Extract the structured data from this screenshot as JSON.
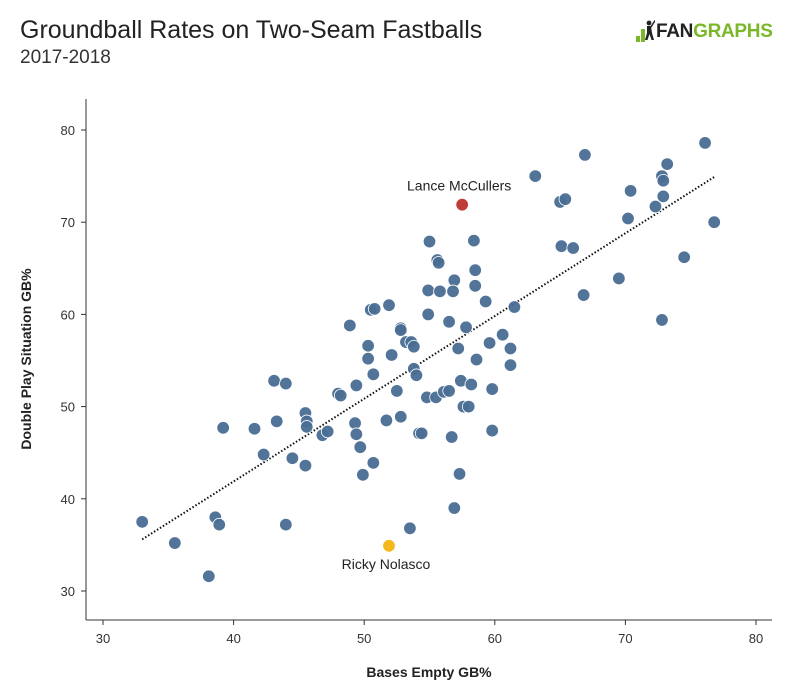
{
  "header": {
    "title": "Groundball Rates on Two-Seam Fastballs",
    "subtitle": "2017-2018"
  },
  "logo": {
    "text_part1": "FAN",
    "text_part2": "GRAPHS",
    "color": "#7ab829",
    "icon": "fangraphs-batter-logo-icon"
  },
  "colors": {
    "point": "#4a6d94",
    "highlight_red": "#c03c36",
    "highlight_yellow": "#f4b81c"
  },
  "chart_data": {
    "type": "scatter",
    "title": "Groundball Rates on Two-Seam Fastballs",
    "subtitle": "2017-2018",
    "xlabel": "Bases Empty GB%",
    "ylabel": "Double Play Situation GB%",
    "xlim": [
      29,
      81
    ],
    "ylim": [
      27,
      83
    ],
    "xticks": [
      30,
      40,
      50,
      60,
      70,
      80
    ],
    "yticks": [
      30,
      40,
      50,
      60,
      70,
      80
    ],
    "grid": false,
    "trendline": {
      "style": "dotted",
      "x": [
        33,
        76.8
      ],
      "y": [
        35.6,
        74.9
      ]
    },
    "points": [
      [
        33.0,
        37.5
      ],
      [
        35.5,
        35.2
      ],
      [
        38.1,
        31.6
      ],
      [
        38.6,
        38.0
      ],
      [
        38.9,
        37.2
      ],
      [
        39.2,
        47.7
      ],
      [
        41.6,
        47.6
      ],
      [
        42.3,
        44.8
      ],
      [
        43.1,
        52.8
      ],
      [
        43.3,
        48.4
      ],
      [
        44.0,
        52.5
      ],
      [
        44.0,
        37.2
      ],
      [
        44.5,
        44.4
      ],
      [
        45.5,
        49.3
      ],
      [
        45.6,
        48.4
      ],
      [
        45.6,
        47.8
      ],
      [
        45.5,
        43.6
      ],
      [
        46.8,
        46.9
      ],
      [
        47.2,
        47.3
      ],
      [
        48.0,
        51.4
      ],
      [
        48.2,
        51.2
      ],
      [
        48.9,
        58.8
      ],
      [
        49.4,
        52.3
      ],
      [
        49.3,
        48.2
      ],
      [
        49.4,
        47.0
      ],
      [
        49.7,
        45.6
      ],
      [
        49.9,
        42.6
      ],
      [
        50.3,
        56.6
      ],
      [
        50.3,
        55.2
      ],
      [
        50.5,
        60.5
      ],
      [
        50.8,
        60.6
      ],
      [
        50.7,
        53.5
      ],
      [
        50.7,
        43.9
      ],
      [
        51.7,
        48.5
      ],
      [
        51.9,
        61.0
      ],
      [
        52.1,
        55.6
      ],
      [
        52.5,
        51.7
      ],
      [
        52.8,
        58.5
      ],
      [
        52.8,
        58.3
      ],
      [
        52.8,
        48.9
      ],
      [
        53.2,
        57.0
      ],
      [
        53.6,
        57.0
      ],
      [
        53.5,
        36.8
      ],
      [
        53.8,
        56.5
      ],
      [
        53.8,
        54.1
      ],
      [
        54.0,
        53.4
      ],
      [
        54.2,
        47.1
      ],
      [
        54.4,
        47.1
      ],
      [
        54.8,
        51.0
      ],
      [
        55.0,
        67.9
      ],
      [
        54.9,
        62.6
      ],
      [
        54.9,
        60.0
      ],
      [
        55.5,
        51.0
      ],
      [
        55.6,
        65.9
      ],
      [
        55.7,
        65.6
      ],
      [
        55.8,
        62.5
      ],
      [
        56.1,
        51.6
      ],
      [
        56.5,
        59.2
      ],
      [
        56.5,
        51.7
      ],
      [
        56.7,
        46.7
      ],
      [
        56.9,
        63.7
      ],
      [
        56.9,
        39.0
      ],
      [
        56.8,
        62.5
      ],
      [
        57.2,
        56.3
      ],
      [
        57.3,
        42.7
      ],
      [
        57.4,
        52.8
      ],
      [
        57.6,
        50.0
      ],
      [
        57.8,
        58.6
      ],
      [
        58.0,
        50.0
      ],
      [
        58.2,
        52.4
      ],
      [
        58.4,
        68.0
      ],
      [
        58.5,
        64.8
      ],
      [
        58.5,
        63.1
      ],
      [
        58.6,
        55.1
      ],
      [
        59.3,
        61.4
      ],
      [
        59.6,
        56.9
      ],
      [
        59.8,
        51.9
      ],
      [
        59.8,
        47.4
      ],
      [
        60.6,
        57.8
      ],
      [
        61.2,
        56.3
      ],
      [
        61.2,
        54.5
      ],
      [
        61.5,
        60.8
      ],
      [
        63.1,
        75.0
      ],
      [
        65.0,
        72.2
      ],
      [
        65.1,
        67.4
      ],
      [
        65.4,
        72.5
      ],
      [
        66.0,
        67.2
      ],
      [
        66.8,
        62.1
      ],
      [
        66.9,
        77.3
      ],
      [
        69.5,
        63.9
      ],
      [
        70.2,
        70.4
      ],
      [
        70.4,
        73.4
      ],
      [
        72.3,
        71.7
      ],
      [
        72.8,
        75.0
      ],
      [
        72.9,
        74.5
      ],
      [
        72.9,
        72.8
      ],
      [
        72.8,
        59.4
      ],
      [
        73.2,
        76.3
      ],
      [
        74.5,
        66.2
      ],
      [
        76.1,
        78.6
      ],
      [
        76.8,
        70.0
      ]
    ],
    "highlighted": [
      {
        "name": "Lance McCullers",
        "x": 57.5,
        "y": 71.9,
        "color": "#c03c36",
        "label_position": "above"
      },
      {
        "name": "Ricky Nolasco",
        "x": 51.9,
        "y": 34.9,
        "color": "#f4b81c",
        "label_position": "below"
      }
    ]
  }
}
